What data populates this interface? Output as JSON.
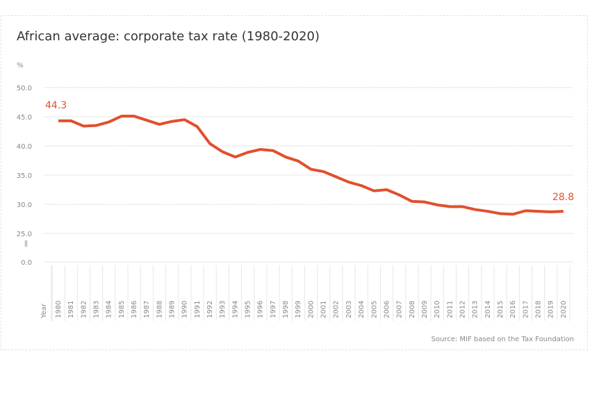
{
  "chart_data": {
    "type": "line",
    "title": "African average: corporate tax rate (1980-2020)",
    "ylabel": "%",
    "xlabel": "Year",
    "source": "Source: MIF based on the Tax Foundation",
    "y_ticks": [
      "0.0",
      "25.0",
      "30.0",
      "35.0",
      "40.0",
      "45.0",
      "50.0"
    ],
    "ylim": [
      0,
      50
    ],
    "axis_break": "between 0 and 25",
    "grid": true,
    "line_color": "#e0502c",
    "x": [
      1980,
      1981,
      1982,
      1983,
      1984,
      1985,
      1986,
      1987,
      1988,
      1989,
      1990,
      1991,
      1992,
      1993,
      1994,
      1995,
      1996,
      1997,
      1998,
      1999,
      2000,
      2001,
      2002,
      2003,
      2004,
      2005,
      2006,
      2007,
      2008,
      2009,
      2010,
      2011,
      2012,
      2013,
      2014,
      2015,
      2016,
      2017,
      2018,
      2019,
      2020
    ],
    "values": [
      44.3,
      44.3,
      43.4,
      43.5,
      44.1,
      45.1,
      45.1,
      44.4,
      43.7,
      44.2,
      44.5,
      43.3,
      40.4,
      39.0,
      38.1,
      38.9,
      39.4,
      39.2,
      38.1,
      37.4,
      36.0,
      35.6,
      34.7,
      33.8,
      33.2,
      32.3,
      32.5,
      31.6,
      30.5,
      30.4,
      29.9,
      29.6,
      29.6,
      29.1,
      28.8,
      28.4,
      28.3,
      28.9,
      28.8,
      28.7,
      28.8
    ],
    "annotations": [
      {
        "year": 1980,
        "label": "44.3"
      },
      {
        "year": 2020,
        "label": "28.8"
      }
    ]
  }
}
